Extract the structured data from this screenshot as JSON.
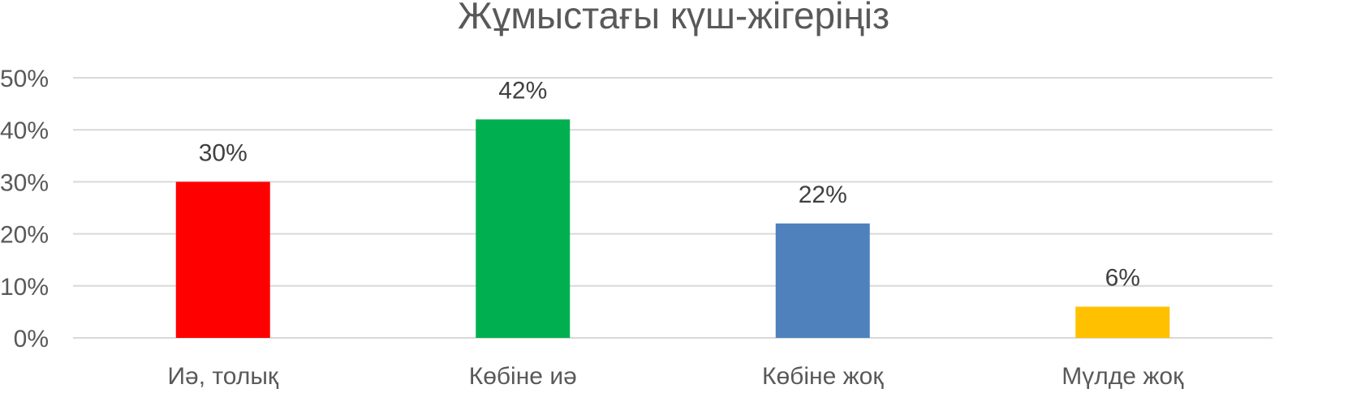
{
  "chart_data": {
    "type": "bar",
    "title": "Жұмыстағы күш-жігеріңіз",
    "categories": [
      "Иә, толық",
      "Көбіне иә",
      "Көбіне жоқ",
      "Мүлде жоқ"
    ],
    "values": [
      30,
      42,
      22,
      6
    ],
    "data_labels": [
      "30%",
      "42%",
      "22%",
      "6%"
    ],
    "colors": [
      "#ff0000",
      "#00b050",
      "#4f81bd",
      "#ffc000"
    ],
    "ylim": [
      0,
      50
    ],
    "yticks": [
      0,
      10,
      20,
      30,
      40,
      50
    ],
    "ytick_labels": [
      "0%",
      "10%",
      "20%",
      "30%",
      "40%",
      "50%"
    ],
    "xlabel": "",
    "ylabel": "",
    "grid": true,
    "legend": "none"
  }
}
